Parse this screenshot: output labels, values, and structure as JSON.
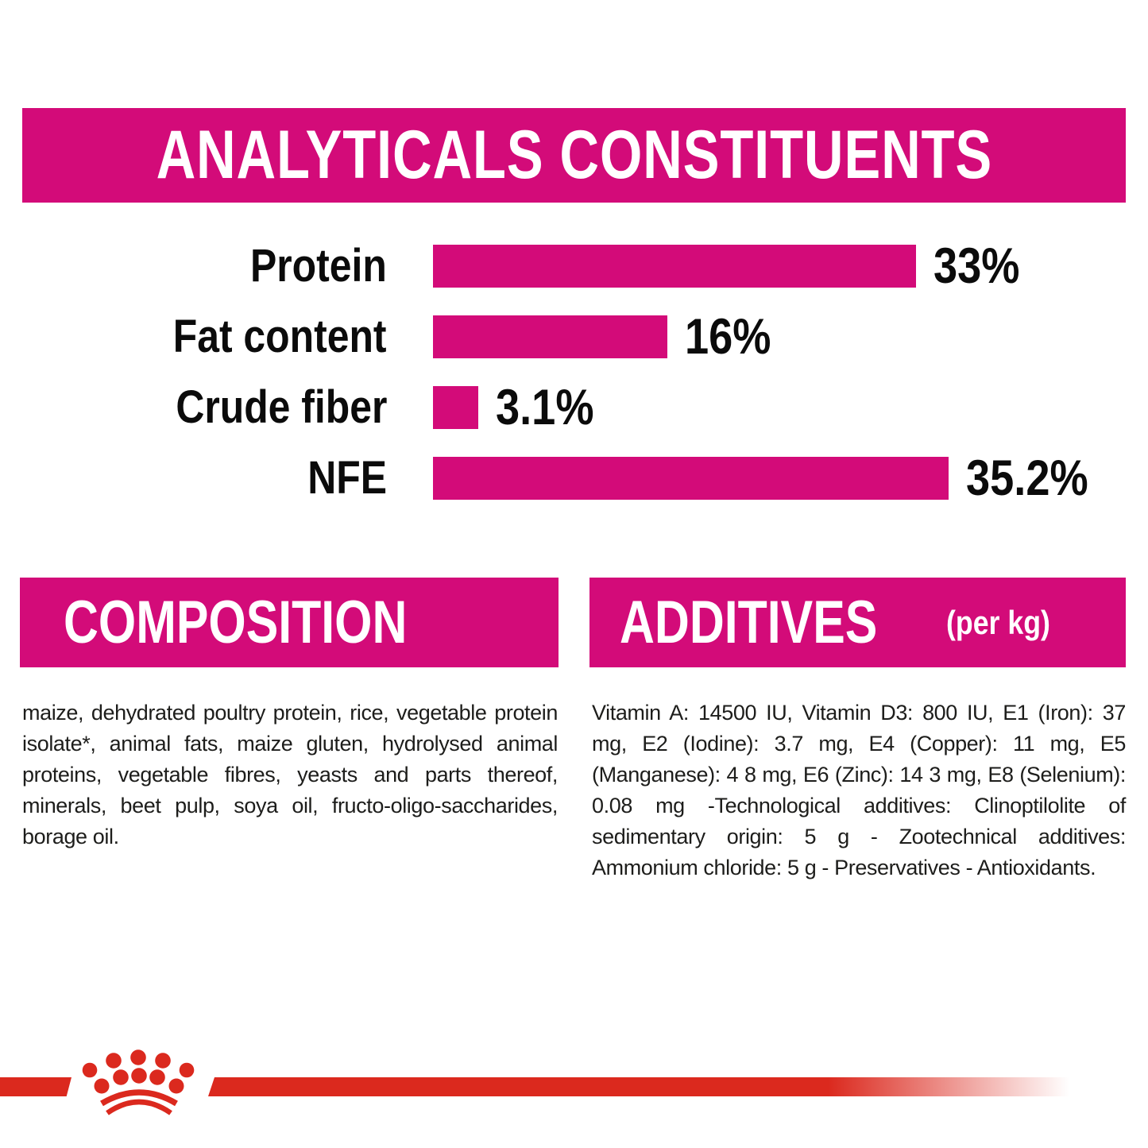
{
  "analyticals": {
    "title": "ANALYTICALS CONSTITUENTS"
  },
  "chart_data": {
    "type": "bar",
    "title": "ANALYTICALS CONSTITUENTS",
    "categories": [
      "Protein",
      "Fat content",
      "Crude fiber",
      "NFE"
    ],
    "values": [
      33,
      16,
      3.1,
      35.2
    ],
    "value_labels": [
      "33%",
      "16%",
      "3.1%",
      "35.2%"
    ],
    "unit": "%",
    "xlim": [
      0,
      40
    ],
    "bar_color": "#d30b79",
    "orientation": "horizontal",
    "grid": false,
    "legend": false
  },
  "composition": {
    "title": "COMPOSITION",
    "text": "maize, dehydrated poultry protein, rice, vegetable protein isolate*, animal fats, maize gluten, hydrolysed animal proteins, vegetable fibres, yeasts and parts thereof, minerals, beet pulp, soya oil, fructo-oligo-saccharides, borage oil."
  },
  "additives": {
    "title": "ADDITIVES",
    "unit_note": "(per kg)",
    "text": "Vitamin A: 14500 IU, Vitamin D3: 800 IU, E1 (Iron): 37 mg, E2 (Iodine): 3.7 mg, E4 (Copper): 11 mg, E5 (Manganese): 4 8 mg, E6 (Zinc): 14 3 mg, E8 (Selenium): 0.08 mg -Technological additives: Clinoptilolite of sedimentary origin: 5 g - Zootechnical additives: Ammonium chloride: 5 g - Preservatives - Antioxidants.",
    "icons": []
  },
  "footer": {
    "logo_icon": "royal-canin-crown-logo"
  },
  "colors": {
    "magenta": "#d30b79",
    "brand_red": "#db291e",
    "text": "#1d1d1b",
    "background": "#ffffff"
  }
}
